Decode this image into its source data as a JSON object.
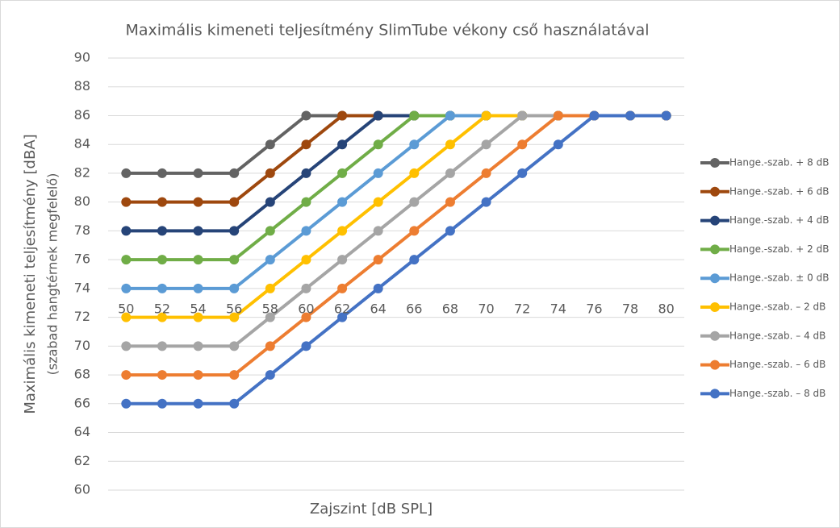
{
  "chart_data": {
    "type": "line",
    "title": "Maximális kimeneti teljesítmény SlimTube vékony cső használatával",
    "x_label": "Zajszint [dB SPL]",
    "y_label": [
      "Maximális kimeneti teljesítmény [dBA]",
      "(szabad hangtérnek megfelelő)"
    ],
    "categories": [
      50,
      52,
      54,
      56,
      58,
      60,
      62,
      64,
      66,
      68,
      70,
      72,
      74,
      76,
      78,
      80
    ],
    "ylim": [
      60,
      90
    ],
    "yticks": [
      60,
      62,
      64,
      66,
      68,
      70,
      72,
      74,
      76,
      78,
      80,
      82,
      84,
      86,
      88,
      90
    ],
    "grid": true,
    "legend": "right",
    "series": [
      {
        "name": "Hange.-szab. + 8 dB",
        "color": "#636363",
        "values": [
          82,
          82,
          82,
          82,
          84,
          86,
          86,
          86,
          86,
          86,
          86,
          86,
          86,
          86,
          86,
          86
        ]
      },
      {
        "name": "Hange.-szab. + 6 dB",
        "color": "#9e480e",
        "values": [
          80,
          80,
          80,
          80,
          82,
          84,
          86,
          86,
          86,
          86,
          86,
          86,
          86,
          86,
          86,
          86
        ]
      },
      {
        "name": "Hange.-szab. + 4 dB",
        "color": "#264478",
        "values": [
          78,
          78,
          78,
          78,
          80,
          82,
          84,
          86,
          86,
          86,
          86,
          86,
          86,
          86,
          86,
          86
        ]
      },
      {
        "name": "Hange.-szab. + 2 dB",
        "color": "#70ad47",
        "values": [
          76,
          76,
          76,
          76,
          78,
          80,
          82,
          84,
          86,
          86,
          86,
          86,
          86,
          86,
          86,
          86
        ]
      },
      {
        "name": "Hange.-szab. ± 0 dB",
        "color": "#5b9bd5",
        "values": [
          74,
          74,
          74,
          74,
          76,
          78,
          80,
          82,
          84,
          86,
          86,
          86,
          86,
          86,
          86,
          86
        ]
      },
      {
        "name": "Hange.-szab. – 2 dB",
        "color": "#ffc000",
        "values": [
          72,
          72,
          72,
          72,
          74,
          76,
          78,
          80,
          82,
          84,
          86,
          86,
          86,
          86,
          86,
          86
        ]
      },
      {
        "name": "Hange.-szab. – 4 dB",
        "color": "#a5a5a5",
        "values": [
          70,
          70,
          70,
          70,
          72,
          74,
          76,
          78,
          80,
          82,
          84,
          86,
          86,
          86,
          86,
          86
        ]
      },
      {
        "name": "Hange.-szab. – 6 dB",
        "color": "#ed7d31",
        "values": [
          68,
          68,
          68,
          68,
          70,
          72,
          74,
          76,
          78,
          80,
          82,
          84,
          86,
          86,
          86,
          86
        ]
      },
      {
        "name": "Hange.-szab. – 8 dB",
        "color": "#4472c4",
        "values": [
          66,
          66,
          66,
          66,
          68,
          70,
          72,
          74,
          76,
          78,
          80,
          82,
          84,
          86,
          86,
          86
        ]
      }
    ]
  }
}
